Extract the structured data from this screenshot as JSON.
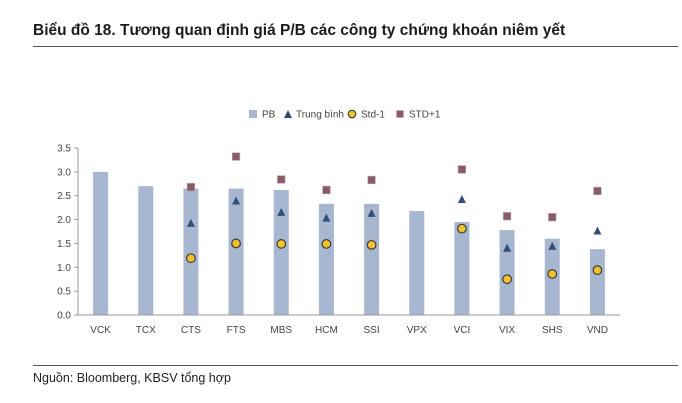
{
  "page": {
    "title": "Biểu đồ 18. Tương quan định giá P/B các công ty chứng khoán niêm yết",
    "source": "Nguồn: Bloomberg, KBSV tổng hợp"
  },
  "chart_data": {
    "type": "bar",
    "title": "",
    "xlabel": "",
    "ylabel": "",
    "ylim": [
      0,
      3.5
    ],
    "yticks": [
      "0.0",
      "0.5",
      "1.0",
      "1.5",
      "2.0",
      "2.5",
      "3.0",
      "3.5"
    ],
    "legend_position": "top-center",
    "grid": false,
    "categories": [
      "VCK",
      "TCX",
      "CTS",
      "FTS",
      "MBS",
      "HCM",
      "SSI",
      "VPX",
      "VCI",
      "VIX",
      "SHS",
      "VND"
    ],
    "series": [
      {
        "name": "PB",
        "kind": "bar",
        "color": "#a7b7d0",
        "values": [
          3.0,
          2.7,
          2.65,
          2.65,
          2.62,
          2.33,
          2.33,
          2.18,
          1.95,
          1.78,
          1.6,
          1.38
        ]
      },
      {
        "name": "Trung bình",
        "kind": "marker-triangle",
        "color": "#2f5078",
        "values": [
          null,
          null,
          1.93,
          2.4,
          2.16,
          2.04,
          2.14,
          null,
          2.43,
          1.41,
          1.45,
          1.77
        ]
      },
      {
        "name": "Std-1",
        "kind": "marker-circle",
        "color": "#f2c12e",
        "stroke": "#3a3a3a",
        "values": [
          null,
          null,
          1.19,
          1.5,
          1.49,
          1.49,
          1.47,
          null,
          1.81,
          0.75,
          0.86,
          0.94
        ]
      },
      {
        "name": "STD+1",
        "kind": "marker-square",
        "color": "#8a5a66",
        "values": [
          null,
          null,
          2.68,
          3.32,
          2.84,
          2.62,
          2.83,
          null,
          3.05,
          2.07,
          2.05,
          2.6
        ]
      }
    ]
  }
}
